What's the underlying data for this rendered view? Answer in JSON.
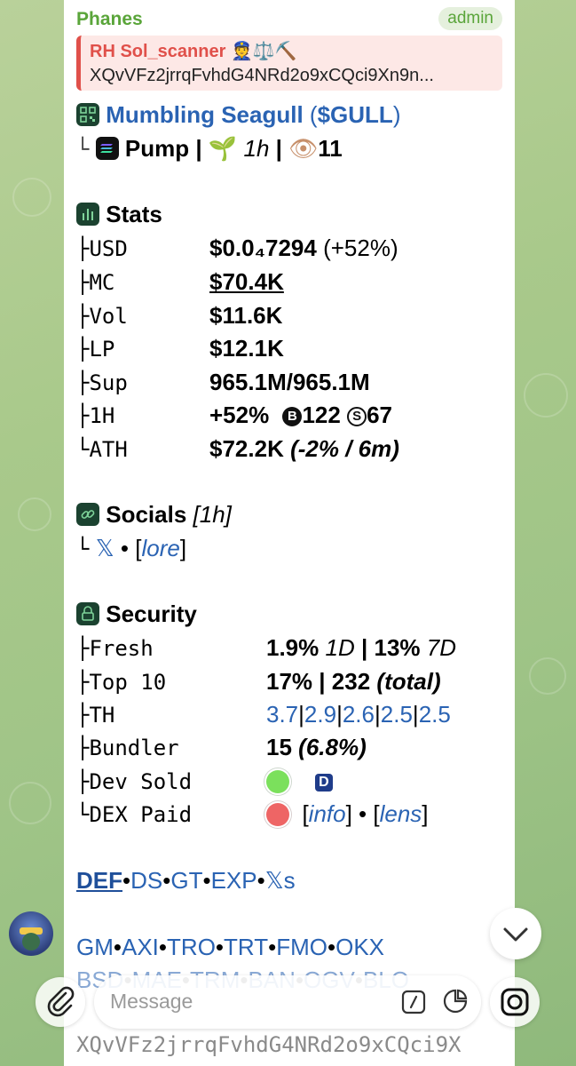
{
  "message": {
    "sender": "Phanes",
    "sender_badge": "admin",
    "reply": {
      "title": "RH Sol_scanner 👮⚖️⛏️",
      "text": "XQvVFz2jrrqFvhdG4NRd2o9xCQci9Xn9n..."
    },
    "token": {
      "name": "Mumbling Seagull",
      "ticker": "$GULL",
      "platform": "Pump",
      "age": "1h",
      "views": "11"
    },
    "stats": {
      "heading": "Stats",
      "usd_label": "USD",
      "usd_value": "$0.0₄7294",
      "usd_change": "(+52%)",
      "mc_label": "MC",
      "mc_value": "$70.4K",
      "vol_label": "Vol",
      "vol_value": "$11.6K",
      "lp_label": "LP",
      "lp_value": "$12.1K",
      "sup_label": "Sup",
      "sup_value": "965.1M/965.1M",
      "h1_label": "1H",
      "h1_change": "+52%",
      "h1_buys": "122",
      "h1_sells": "67",
      "ath_label": "ATH",
      "ath_value": "$72.2K",
      "ath_detail": "(-2% / 6m)"
    },
    "socials": {
      "heading": "Socials",
      "age": "[1h]",
      "x_label": "𝕏",
      "lore_label": "lore"
    },
    "security": {
      "heading": "Security",
      "fresh_label": "Fresh",
      "fresh_1d": "1.9%",
      "fresh_1d_unit": "1D",
      "fresh_7d": "13%",
      "fresh_7d_unit": "7D",
      "top10_label": "Top 10",
      "top10_pct": "17%",
      "top10_total": "232",
      "top10_total_label": "(total)",
      "th_label": "TH",
      "th_values": [
        "3.7",
        "2.9",
        "2.6",
        "2.5",
        "2.5"
      ],
      "bundler_label": "Bundler",
      "bundler_count": "15",
      "bundler_pct": "(6.8%)",
      "dev_sold_label": "Dev Sold",
      "dev_badge": "D",
      "dex_paid_label": "DEX Paid",
      "info_label": "info",
      "lens_label": "lens"
    },
    "links_row1": [
      "DEF",
      "DS",
      "GT",
      "EXP",
      "𝕏s"
    ],
    "links_row2": [
      "GM",
      "AXI",
      "TRO",
      "TRT",
      "FMO",
      "OKX"
    ],
    "links_row3": [
      "BSD",
      "MAE",
      "TRM",
      "BAN",
      "OGV",
      "BLO"
    ],
    "footer_address": "XQvVFz2jrrqFvhdG4NRd2o9xCQci9X"
  },
  "composer": {
    "placeholder": "Message"
  },
  "colors": {
    "sender": "#5aa53a",
    "reply_accent": "#e0504a",
    "link": "#2a63b3",
    "green_dot": "#7be05c",
    "red_dot": "#ee6565"
  }
}
